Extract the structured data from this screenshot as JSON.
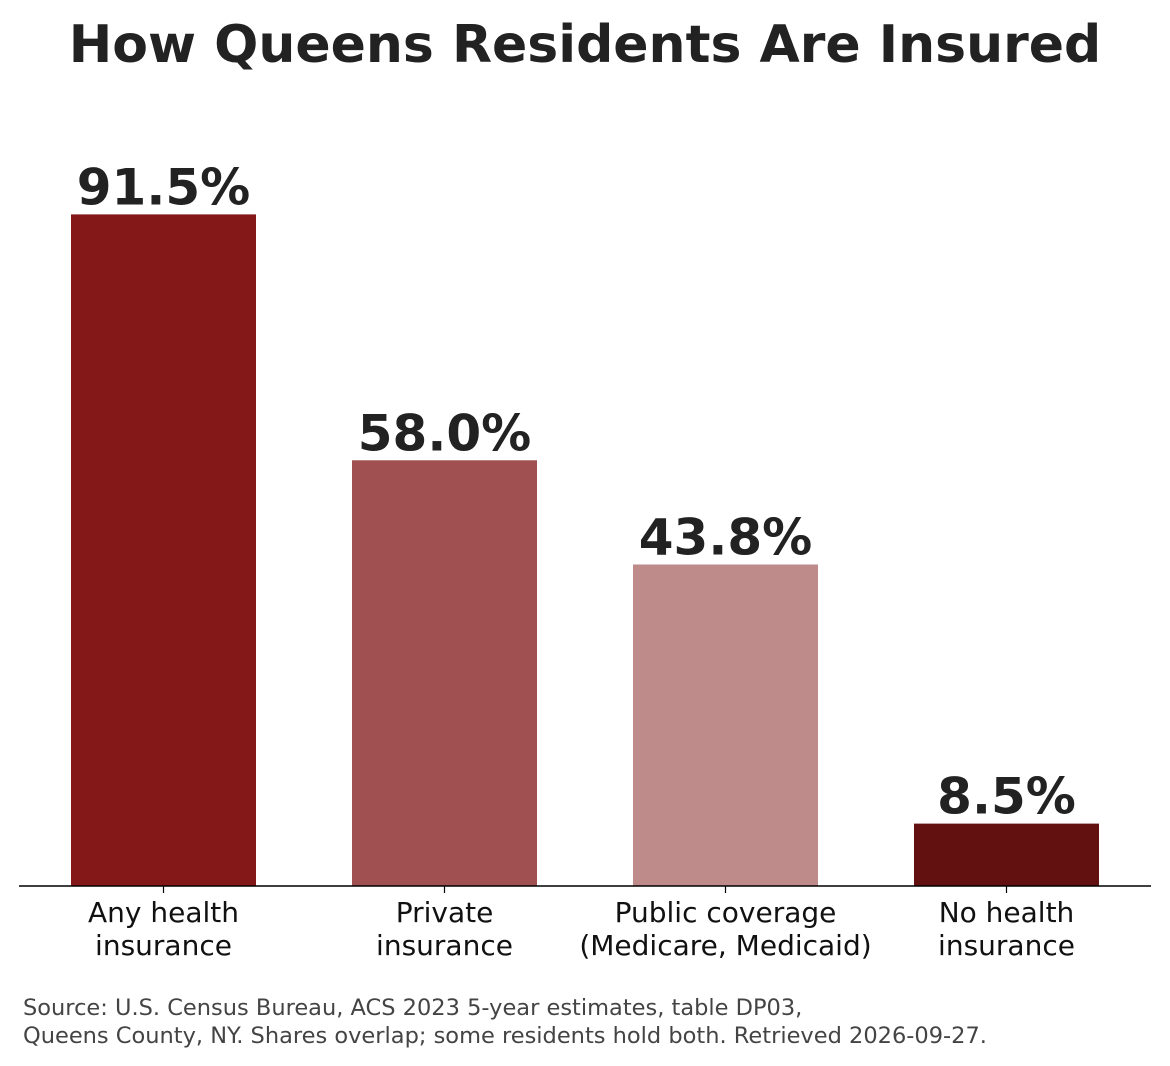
{
  "chart_data": {
    "type": "bar",
    "title": "How Queens Residents Are Insured",
    "categories": [
      [
        "Any health",
        "insurance"
      ],
      [
        "Private",
        "insurance"
      ],
      [
        "Public coverage",
        "(Medicare, Medicaid)"
      ],
      [
        "No health",
        "insurance"
      ]
    ],
    "values": [
      91.5,
      58.0,
      43.8,
      8.5
    ],
    "value_labels": [
      "91.5%",
      "58.0%",
      "43.8%",
      "8.5%"
    ],
    "colors": [
      "#841818",
      "#a05050",
      "#be8a8a",
      "#631010"
    ],
    "ylim": [
      0,
      100
    ],
    "y_axis_visible": false,
    "grid": false,
    "legend": "none",
    "xlabel": "",
    "ylabel": ""
  },
  "source": {
    "line1": "Source: U.S. Census Bureau, ACS 2023 5-year estimates, table DP03,",
    "line2": "Queens County, NY. Shares overlap; some residents hold both. Retrieved 2026-09-27."
  }
}
